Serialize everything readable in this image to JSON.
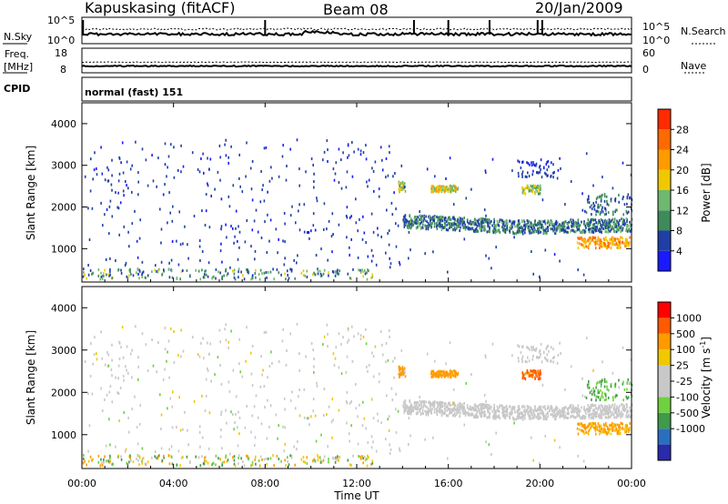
{
  "header": {
    "station": "Kapuskasing (fitACF)",
    "beam": "Beam 08",
    "date": "20/Jan/2009"
  },
  "panels": {
    "noise": {
      "left_label": "N.Sky",
      "left_ticks": [
        "10^5",
        "10^0"
      ],
      "right_ticks": [
        "10^5",
        "10^0"
      ],
      "right_label": "N.Search"
    },
    "freq": {
      "left_label_1": "Freq.",
      "left_label_2": "[MHz]",
      "left_ticks": [
        "18",
        "8"
      ],
      "right_ticks": [
        "60",
        "0"
      ],
      "right_label": "Nave"
    },
    "cpid": {
      "label": "CPID",
      "text": "normal (fast) 151"
    }
  },
  "colors": {
    "power_scale": [
      "#1a1aff",
      "#1f3fa6",
      "#3f8a5a",
      "#6fb86f",
      "#f0c800",
      "#ff9a00",
      "#ff6a00",
      "#ff2a00"
    ],
    "velocity_scale": [
      "#ff0000",
      "#ff5a00",
      "#ff9a00",
      "#f0c800",
      "#c8c8c8",
      "#c8c8c8",
      "#6fd13f",
      "#3f9a4a",
      "#2a6fbf",
      "#2a2aaa"
    ]
  },
  "chart_data": [
    {
      "type": "heatmap",
      "title": "Power",
      "ylabel": "Slant Range [km]",
      "ylim": [
        200,
        4500
      ],
      "yticks": [
        "1000",
        "2000",
        "3000",
        "4000"
      ],
      "xlim": [
        "00:00",
        "24:00"
      ],
      "colorbar": {
        "label": "Power [dB]",
        "ticks": [
          "4",
          "8",
          "12",
          "16",
          "20",
          "24",
          "28"
        ],
        "range": [
          0,
          32
        ]
      },
      "scatter_features": [
        {
          "time_range": [
            "14:00",
            "24:00"
          ],
          "range_km": [
            1300,
            1700
          ],
          "description_value": "dense band"
        },
        {
          "time_range": [
            "21:45",
            "24:00"
          ],
          "range_km": [
            1000,
            1250
          ],
          "description_value": "high power"
        }
      ]
    },
    {
      "type": "heatmap",
      "title": "Velocity",
      "ylabel": "Slant Range [km]",
      "ylim": [
        200,
        4500
      ],
      "yticks": [
        "1000",
        "2000",
        "3000",
        "4000"
      ],
      "xlim": [
        "00:00",
        "24:00"
      ],
      "xticks": [
        "00:00",
        "04:00",
        "08:00",
        "12:00",
        "16:00",
        "20:00",
        "00:00"
      ],
      "xlabel": "Time UT",
      "colorbar": {
        "label": "Velocity [m s",
        "label_sup": "-1",
        "label_end": "]",
        "ticks": [
          "1000",
          "500",
          "100",
          "25",
          "-25",
          "-100",
          "-500",
          "-1000"
        ]
      }
    }
  ]
}
